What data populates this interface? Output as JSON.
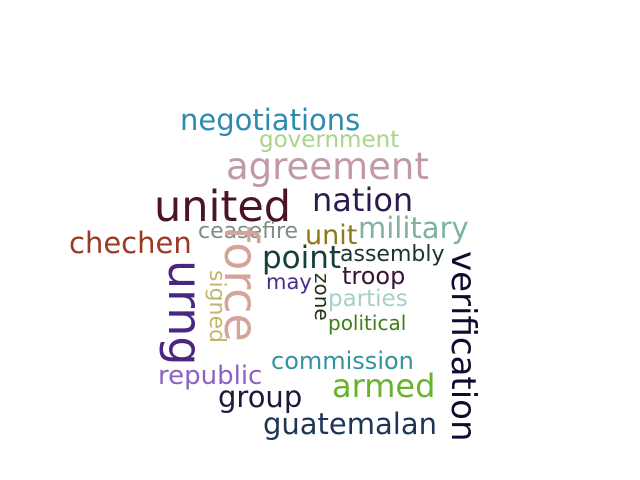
{
  "words": [
    {
      "id": "negotiations",
      "text": "negotiations",
      "color": "#2e8bb0"
    },
    {
      "id": "government",
      "text": "government",
      "color": "#a9d48a"
    },
    {
      "id": "agreement",
      "text": "agreement",
      "color": "#c19aa6"
    },
    {
      "id": "united",
      "text": "united",
      "color": "#4a1428"
    },
    {
      "id": "nation",
      "text": "nation",
      "color": "#2b1b4e"
    },
    {
      "id": "chechen",
      "text": "chechen",
      "color": "#9a3a26"
    },
    {
      "id": "ceasefire",
      "text": "ceasefire",
      "color": "#7d8e86"
    },
    {
      "id": "unit",
      "text": "unit",
      "color": "#8c7a1a"
    },
    {
      "id": "military",
      "text": "military",
      "color": "#7fb3a0"
    },
    {
      "id": "point",
      "text": "point",
      "color": "#163f3a"
    },
    {
      "id": "assembly",
      "text": "assembly",
      "color": "#1c3530"
    },
    {
      "id": "troop",
      "text": "troop",
      "color": "#3a1438"
    },
    {
      "id": "may",
      "text": "may",
      "color": "#4a2d8a"
    },
    {
      "id": "parties",
      "text": "parties",
      "color": "#a6d1c7"
    },
    {
      "id": "political",
      "text": "political",
      "color": "#3f7d1a"
    },
    {
      "id": "commission",
      "text": "commission",
      "color": "#3593a0"
    },
    {
      "id": "armed",
      "text": "armed",
      "color": "#6ab22c"
    },
    {
      "id": "republic",
      "text": "republic",
      "color": "#8e62c2"
    },
    {
      "id": "group",
      "text": "group",
      "color": "#1a1a3a"
    },
    {
      "id": "guatemalan",
      "text": "guatemalan",
      "color": "#1f3555"
    },
    {
      "id": "urng",
      "text": "urng",
      "color": "#4a2680"
    },
    {
      "id": "signed",
      "text": "signed",
      "color": "#c2b66a"
    },
    {
      "id": "force",
      "text": "force",
      "color": "#d4a39a"
    },
    {
      "id": "zone",
      "text": "zone",
      "color": "#24341a"
    },
    {
      "id": "verification",
      "text": "verification",
      "color": "#0f0a30"
    }
  ]
}
